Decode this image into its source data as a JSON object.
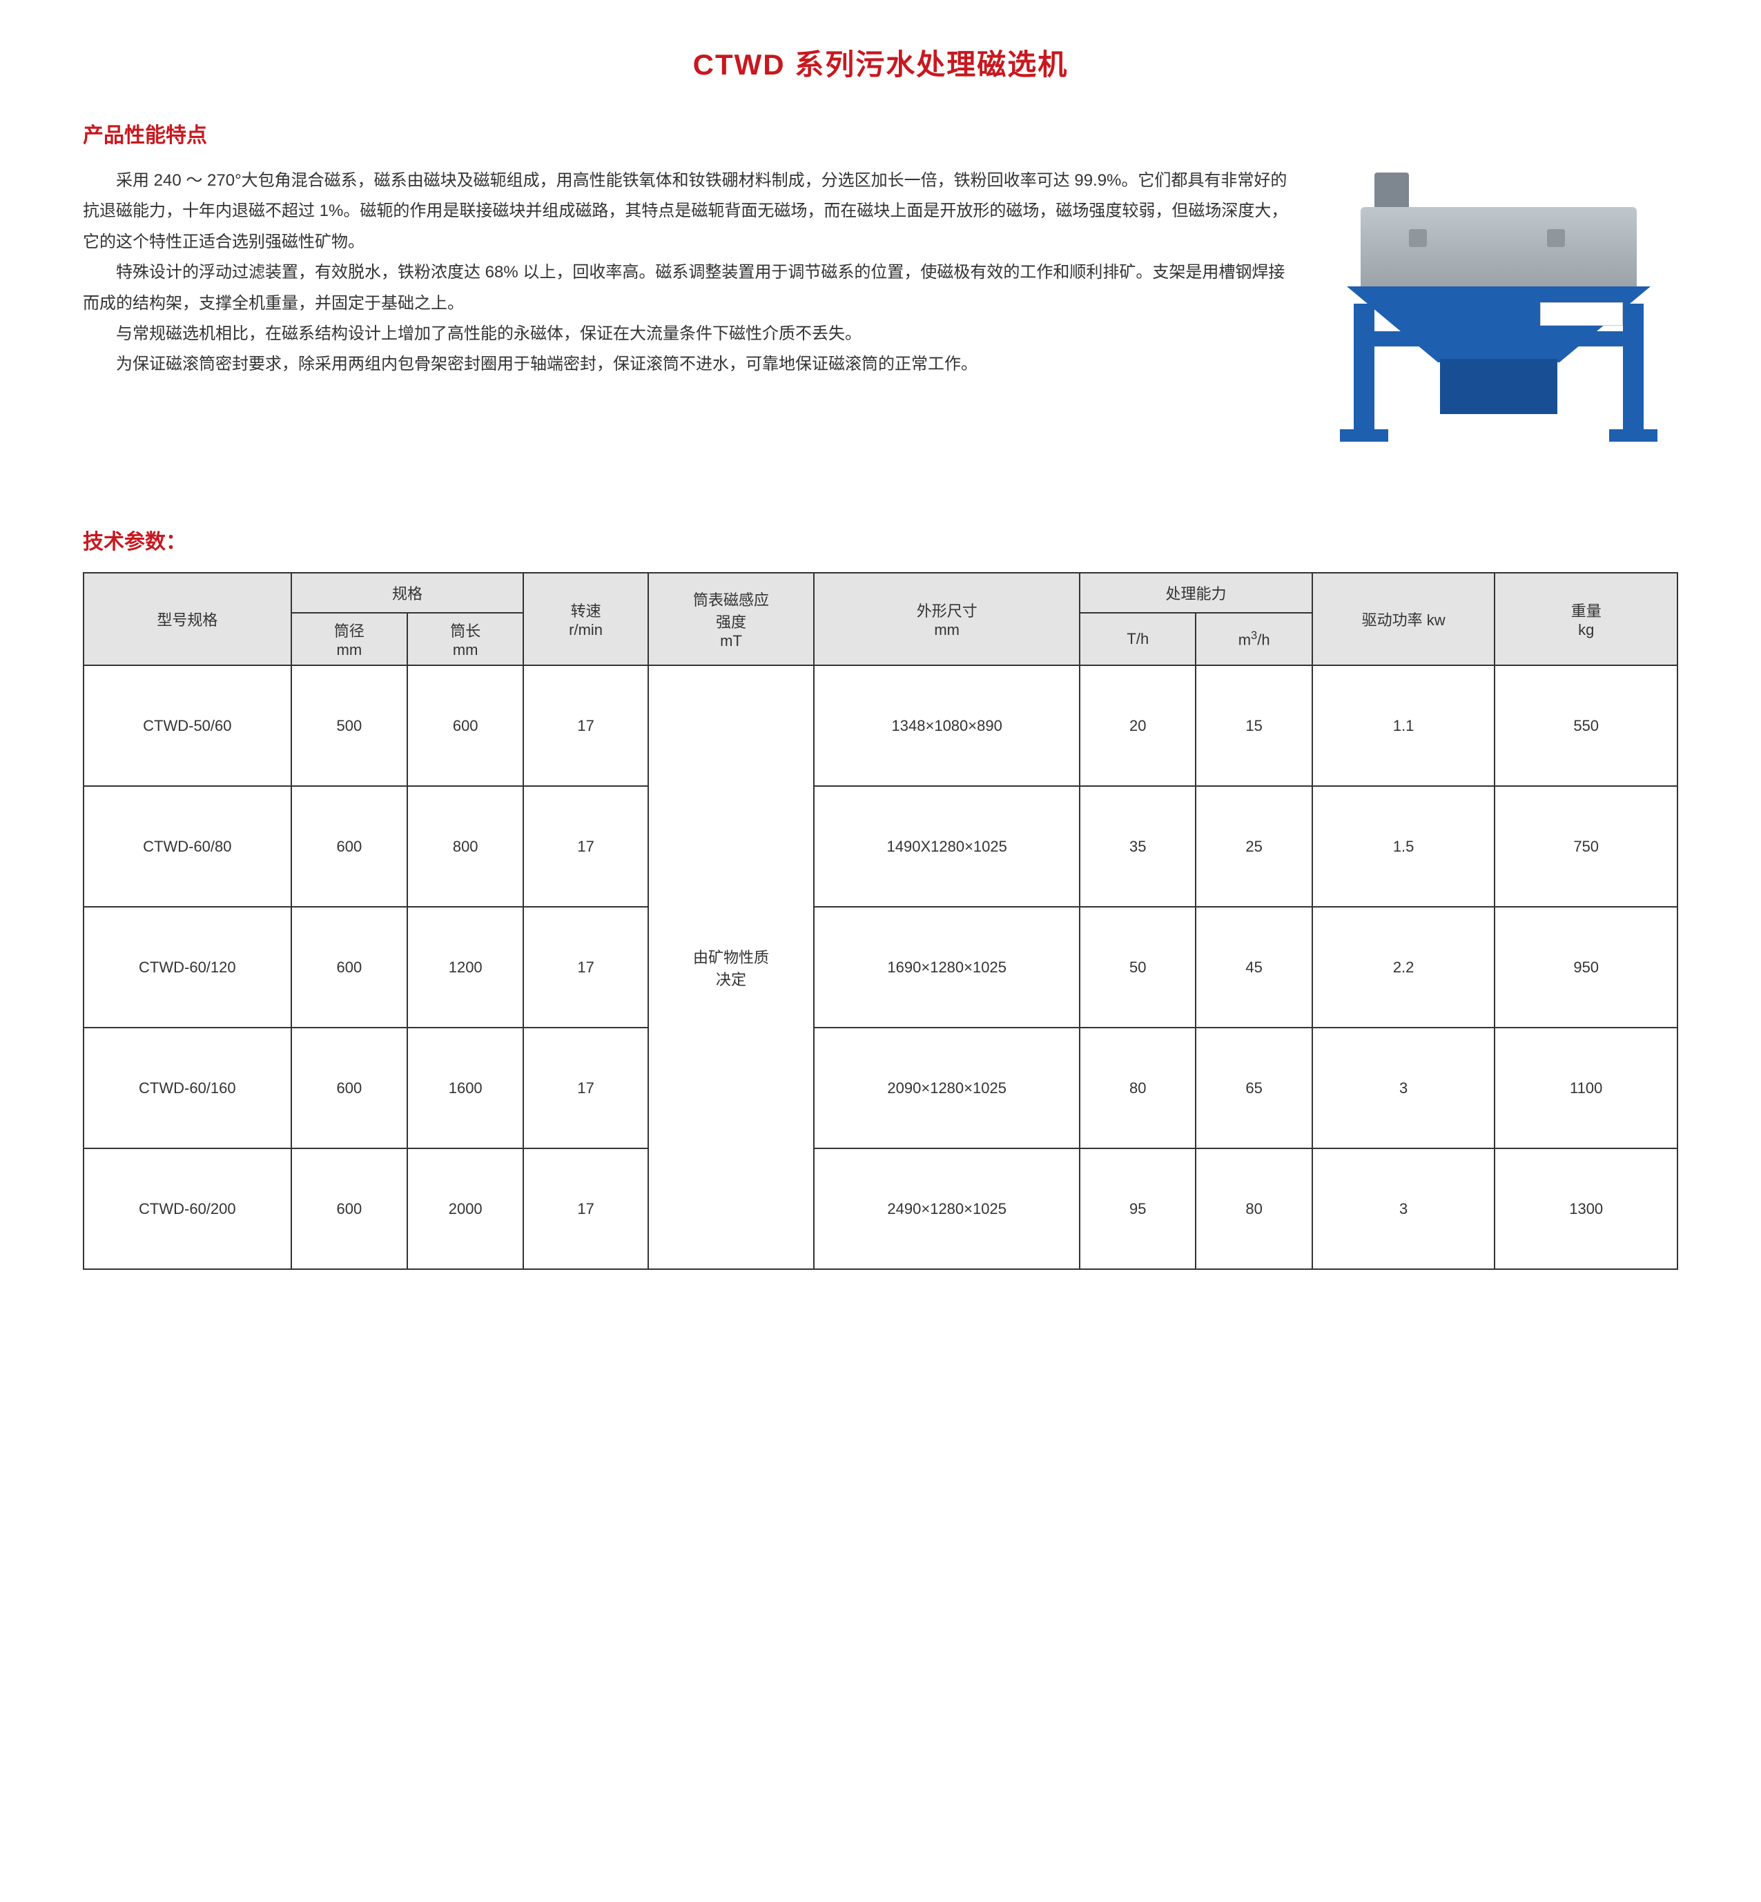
{
  "title": "CTWD 系列污水处理磁选机",
  "features_heading": "产品性能特点",
  "paragraphs": [
    "采用 240 ～ 270°大包角混合磁系，磁系由磁块及磁轭组成，用高性能铁氧体和钕铁硼材料制成，分选区加长一倍，铁粉回收率可达 99.9%。它们都具有非常好的抗退磁能力，十年内退磁不超过 1%。磁轭的作用是联接磁块并组成磁路，其特点是磁轭背面无磁场，而在磁块上面是开放形的磁场，磁场强度较弱，但磁场深度大，它的这个特性正适合选别强磁性矿物。",
    "特殊设计的浮动过滤装置，有效脱水，铁粉浓度达 68% 以上，回收率高。磁系调整装置用于调节磁系的位置，使磁极有效的工作和顺利排矿。支架是用槽钢焊接而成的结构架，支撑全机重量，并固定于基础之上。",
    "与常规磁选机相比，在磁系结构设计上增加了高性能的永磁体，保证在大流量条件下磁性介质不丢失。",
    "为保证磁滚筒密封要求，除采用两组内包骨架密封圈用于轴端密封，保证滚筒不进水，可靠地保证磁滚筒的正常工作。"
  ],
  "params_heading": "技术参数：",
  "table": {
    "headers": {
      "model": "型号规格",
      "spec": "规格",
      "dia": "筒径\nmm",
      "len": "筒长\nmm",
      "speed": "转速\nr/min",
      "mt": "筒表磁感应\n强度\nmT",
      "dim": "外形尺寸\nmm",
      "capacity": "处理能力",
      "th": "T/h",
      "m3h_prefix": "m",
      "m3h_sup": "3",
      "m3h_suffix": "/h",
      "kw": "驱动功率 kw",
      "kg": "重量\nkg"
    },
    "mt_merged": "由矿物性质\n决定",
    "rows": [
      {
        "model": "CTWD-50/60",
        "dia": "500",
        "len": "600",
        "speed": "17",
        "dim": "1348×1080×890",
        "th": "20",
        "m3h": "15",
        "kw": "1.1",
        "kg": "550"
      },
      {
        "model": "CTWD-60/80",
        "dia": "600",
        "len": "800",
        "speed": "17",
        "dim": "1490X1280×1025",
        "th": "35",
        "m3h": "25",
        "kw": "1.5",
        "kg": "750"
      },
      {
        "model": "CTWD-60/120",
        "dia": "600",
        "len": "1200",
        "speed": "17",
        "dim": "1690×1280×1025",
        "th": "50",
        "m3h": "45",
        "kw": "2.2",
        "kg": "950"
      },
      {
        "model": "CTWD-60/160",
        "dia": "600",
        "len": "1600",
        "speed": "17",
        "dim": "2090×1280×1025",
        "th": "80",
        "m3h": "65",
        "kw": "3",
        "kg": "1100"
      },
      {
        "model": "CTWD-60/200",
        "dia": "600",
        "len": "2000",
        "speed": "17",
        "dim": "2490×1280×1025",
        "th": "95",
        "m3h": "80",
        "kw": "3",
        "kg": "1300"
      }
    ]
  },
  "colors": {
    "accent": "#c8181f",
    "machine_blue": "#1e5fb0",
    "machine_grey": "#9aa2a8",
    "header_bg": "#e4e4e4",
    "border": "#333333",
    "text": "#333333",
    "background": "#ffffff"
  },
  "fontsizes": {
    "title": 42,
    "heading": 30,
    "body": 24,
    "table": 22
  }
}
